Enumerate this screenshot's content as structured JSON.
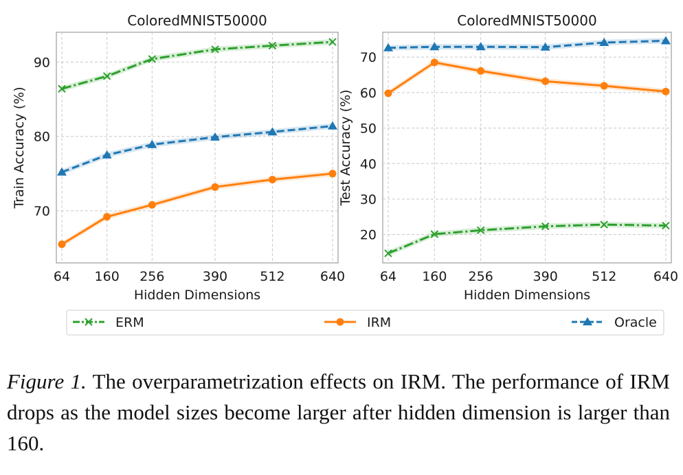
{
  "chart_data": [
    {
      "type": "line",
      "title": "ColoredMNIST50000",
      "xlabel": "Hidden Dimensions",
      "ylabel": "Train Accuracy (%)",
      "x": [
        64,
        160,
        256,
        390,
        512,
        640
      ],
      "x_tick_labels": [
        "64",
        "160",
        "256",
        "390",
        "512",
        "640"
      ],
      "ylim": [
        63,
        94
      ],
      "y_ticks": [
        70,
        80,
        90
      ],
      "grid": true,
      "series": [
        {
          "name": "ERM",
          "values": [
            86.4,
            88.1,
            90.4,
            91.7,
            92.2,
            92.7
          ]
        },
        {
          "name": "IRM",
          "values": [
            65.5,
            69.2,
            70.8,
            73.2,
            74.2,
            75.0
          ]
        },
        {
          "name": "Oracle",
          "values": [
            75.2,
            77.5,
            78.9,
            79.9,
            80.6,
            81.4
          ]
        }
      ]
    },
    {
      "type": "line",
      "title": "ColoredMNIST50000",
      "xlabel": "Hidden Dimensions",
      "ylabel": "Test Accuracy (%)",
      "x": [
        64,
        160,
        256,
        390,
        512,
        640
      ],
      "x_tick_labels": [
        "64",
        "160",
        "256",
        "390",
        "512",
        "640"
      ],
      "ylim": [
        12,
        77
      ],
      "y_ticks": [
        20,
        30,
        40,
        50,
        60,
        70
      ],
      "grid": true,
      "series": [
        {
          "name": "ERM",
          "values": [
            14.7,
            20.1,
            21.2,
            22.3,
            22.8,
            22.5
          ]
        },
        {
          "name": "IRM",
          "values": [
            59.8,
            68.5,
            66.1,
            63.2,
            61.9,
            60.3
          ]
        },
        {
          "name": "Oracle",
          "values": [
            72.6,
            72.9,
            72.9,
            72.8,
            74.1,
            74.6
          ]
        }
      ]
    }
  ],
  "legend": {
    "placement": "bottom",
    "entries": [
      {
        "name": "ERM",
        "color": "#2ca02c",
        "marker": "x",
        "dash": "dash-dot"
      },
      {
        "name": "IRM",
        "color": "#ff7f0e",
        "marker": "circle",
        "dash": "solid"
      },
      {
        "name": "Oracle",
        "color": "#1f77b4",
        "marker": "triangle",
        "dash": "dashed"
      }
    ]
  },
  "colors": {
    "erm": "#2ca02c",
    "irm": "#ff7f0e",
    "oracle": "#1f77b4",
    "grid": "#c8c8c8",
    "axis": "#888888"
  },
  "caption": {
    "label": "Figure 1.",
    "text": " The overparametrization effects on IRM. The performance of IRM drops as the model sizes become larger after hidden dimension is larger than 160."
  }
}
